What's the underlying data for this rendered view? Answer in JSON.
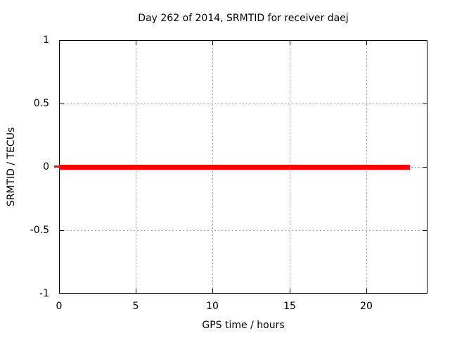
{
  "figure": {
    "background": "#ffffff",
    "text_color": "#000000",
    "border_color": "#000000",
    "grid_color": "#a6a6a6"
  },
  "chart_data": {
    "type": "line",
    "title": "Day 262 of 2014, SRMTID for receiver daej",
    "xlabel": "GPS time / hours",
    "ylabel": "SRMTID / TECUs",
    "xlim": [
      0,
      24
    ],
    "ylim": [
      -1,
      1
    ],
    "x_ticks": [
      0,
      5,
      10,
      15,
      20
    ],
    "x_tick_labels": [
      "0",
      "5",
      "10",
      "15",
      "20"
    ],
    "y_ticks": [
      -1,
      -0.5,
      0,
      0.5,
      1
    ],
    "y_tick_labels": [
      "-1",
      "-0.5",
      "0",
      "0.5",
      "1"
    ],
    "grid": true,
    "legend": "none",
    "series": [
      {
        "name": "SRMTID",
        "color": "#ff0000",
        "linewidth": 7,
        "x": [
          0,
          22.85
        ],
        "y": [
          0,
          0
        ]
      }
    ]
  }
}
